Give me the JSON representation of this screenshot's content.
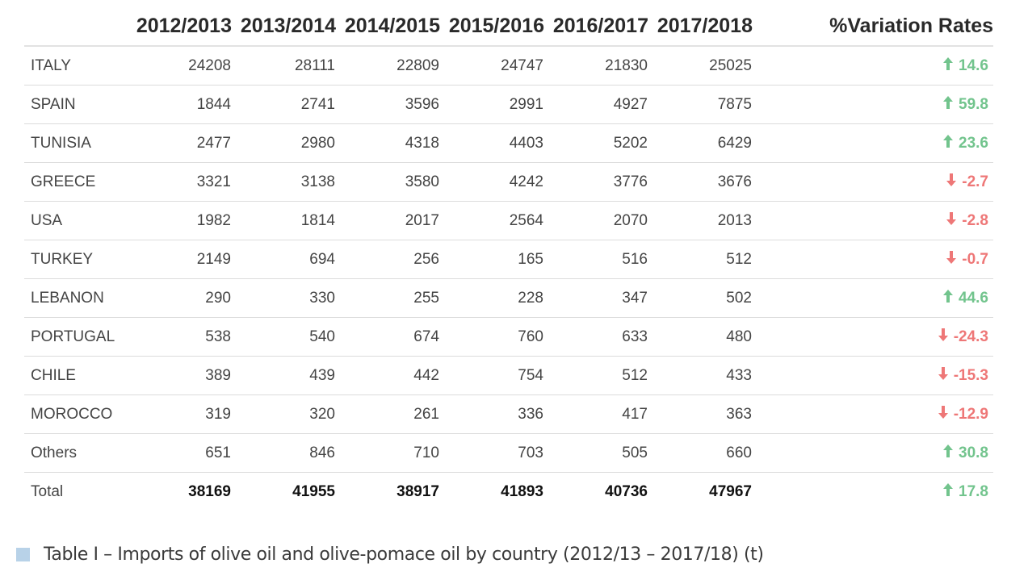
{
  "table": {
    "headers": [
      "2012/2013",
      "2013/2014",
      "2014/2015",
      "2015/2016",
      "2016/2017",
      "2017/2018",
      "%Variation Rates"
    ],
    "rows": [
      {
        "country": "ITALY",
        "values": [
          "24208",
          "28111",
          "22809",
          "24747",
          "21830",
          "25025"
        ],
        "variation": "14.6",
        "trend": "up"
      },
      {
        "country": "SPAIN",
        "values": [
          "1844",
          "2741",
          "3596",
          "2991",
          "4927",
          "7875"
        ],
        "variation": "59.8",
        "trend": "up"
      },
      {
        "country": "TUNISIA",
        "values": [
          "2477",
          "2980",
          "4318",
          "4403",
          "5202",
          "6429"
        ],
        "variation": "23.6",
        "trend": "up"
      },
      {
        "country": "GREECE",
        "values": [
          "3321",
          "3138",
          "3580",
          "4242",
          "3776",
          "3676"
        ],
        "variation": "-2.7",
        "trend": "down"
      },
      {
        "country": "USA",
        "values": [
          "1982",
          "1814",
          "2017",
          "2564",
          "2070",
          "2013"
        ],
        "variation": "-2.8",
        "trend": "down"
      },
      {
        "country": "TURKEY",
        "values": [
          "2149",
          "694",
          "256",
          "165",
          "516",
          "512"
        ],
        "variation": "-0.7",
        "trend": "down"
      },
      {
        "country": "LEBANON",
        "values": [
          "290",
          "330",
          "255",
          "228",
          "347",
          "502"
        ],
        "variation": "44.6",
        "trend": "up"
      },
      {
        "country": "PORTUGAL",
        "values": [
          "538",
          "540",
          "674",
          "760",
          "633",
          "480"
        ],
        "variation": "-24.3",
        "trend": "down"
      },
      {
        "country": "CHILE",
        "values": [
          "389",
          "439",
          "442",
          "754",
          "512",
          "433"
        ],
        "variation": "-15.3",
        "trend": "down"
      },
      {
        "country": "MOROCCO",
        "values": [
          "319",
          "320",
          "261",
          "336",
          "417",
          "363"
        ],
        "variation": "-12.9",
        "trend": "down"
      },
      {
        "country": "Others",
        "values": [
          "651",
          "846",
          "710",
          "703",
          "505",
          "660"
        ],
        "variation": "30.8",
        "trend": "up"
      }
    ],
    "total": {
      "country": "Total",
      "values": [
        "38169",
        "41955",
        "38917",
        "41893",
        "40736",
        "47967"
      ],
      "variation": "17.8",
      "trend": "up"
    }
  },
  "colors": {
    "up": "#72c48d",
    "down": "#ee7777",
    "caption_square": "#b8d2e8"
  },
  "icons": {
    "up": "arrow-up-icon",
    "down": "arrow-down-icon"
  },
  "caption": "Table I – Imports of olive oil and olive-pomace oil by country (2012/13 – 2017/18) (t)"
}
